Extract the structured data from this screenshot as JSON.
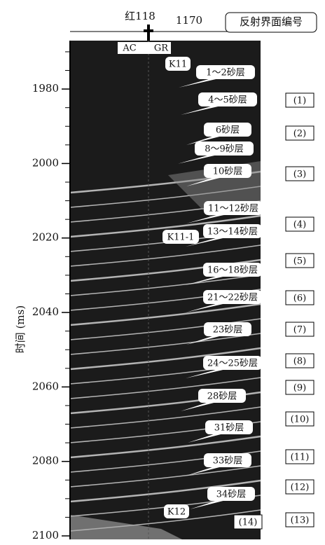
{
  "well": {
    "name": "红118",
    "depth": "1170",
    "logs": [
      "AC",
      "GR"
    ]
  },
  "header": "反射界面编号",
  "axis": {
    "label": "时间 (ms)",
    "ylim": [
      1967,
      2100
    ],
    "yticks": [
      1980,
      2000,
      2020,
      2040,
      2060,
      2080,
      2100
    ]
  },
  "markers": [
    "K11",
    "K11-1",
    "K12"
  ],
  "sand_layers": [
    "1～2砂层",
    "4～5砂层",
    "6砂层",
    "8～9砂层",
    "10砂层",
    "11～12砂层",
    "13～14砂层",
    "16～18砂层",
    "21～22砂层",
    "23砂层",
    "24～25砂层",
    "28砂层",
    "31砂层",
    "33砂层",
    "34砂层"
  ],
  "interfaces": [
    "(1)",
    "(2)",
    "(3)",
    "(4)",
    "(5)",
    "(6)",
    "(7)",
    "(8)",
    "(9)",
    "(10)",
    "(11)",
    "(12)",
    "(13)",
    "(14)"
  ]
}
